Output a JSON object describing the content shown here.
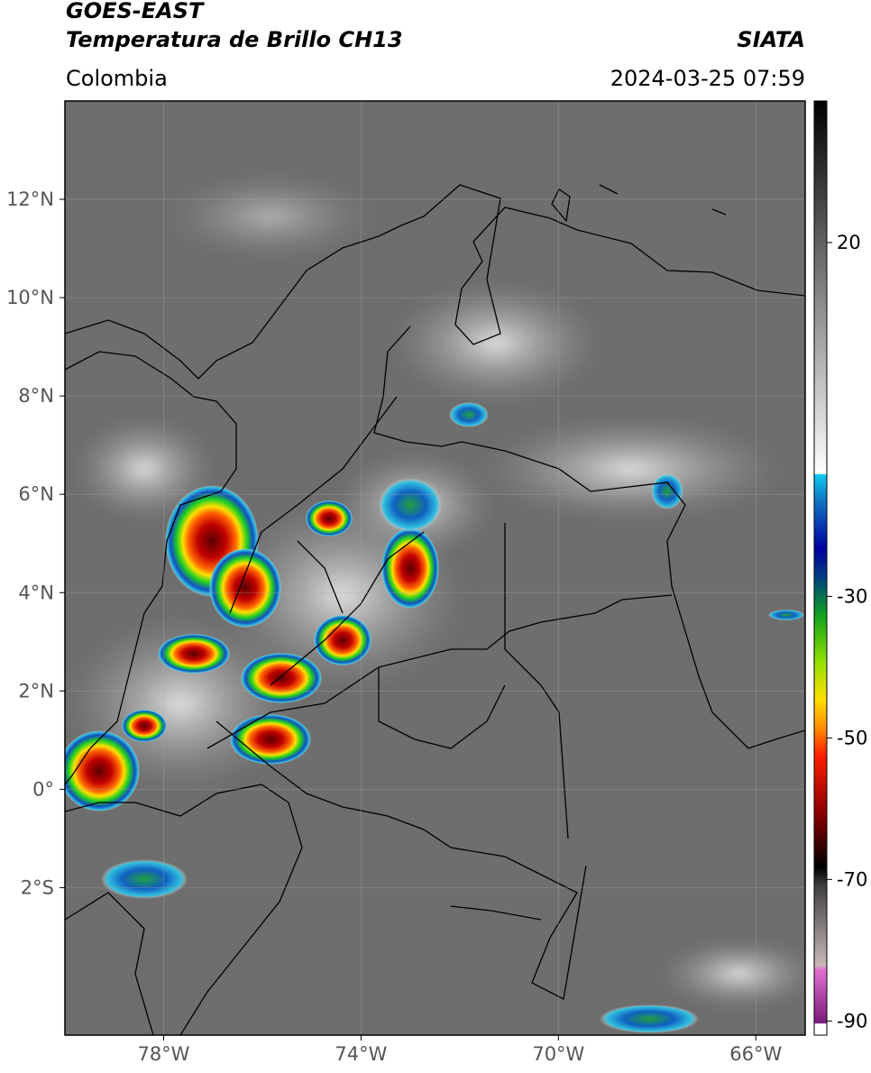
{
  "header": {
    "title": "GOES-EAST",
    "subtitle": "Temperatura de Brillo CH13",
    "source": "SIATA",
    "region": "Colombia",
    "datetime": "2024-03-25 07:59"
  },
  "map": {
    "xlim": [
      -80,
      -65
    ],
    "ylim": [
      -5,
      14
    ],
    "xticks": [
      {
        "value": -78,
        "label": "78°W"
      },
      {
        "value": -74,
        "label": "74°W"
      },
      {
        "value": -70,
        "label": "70°W"
      },
      {
        "value": -66,
        "label": "66°W"
      }
    ],
    "yticks": [
      {
        "value": 12,
        "label": "12°N"
      },
      {
        "value": 10,
        "label": "10°N"
      },
      {
        "value": 8,
        "label": "8°N"
      },
      {
        "value": 6,
        "label": "6°N"
      },
      {
        "value": 4,
        "label": "4°N"
      },
      {
        "value": 2,
        "label": "2°N"
      },
      {
        "value": 0,
        "label": "0°"
      },
      {
        "value": -2,
        "label": "2°S"
      }
    ],
    "grid": true
  },
  "colorbar": {
    "lim": [
      -92,
      40
    ],
    "ticks": [
      20,
      -30,
      -50,
      -70,
      -90
    ]
  }
}
